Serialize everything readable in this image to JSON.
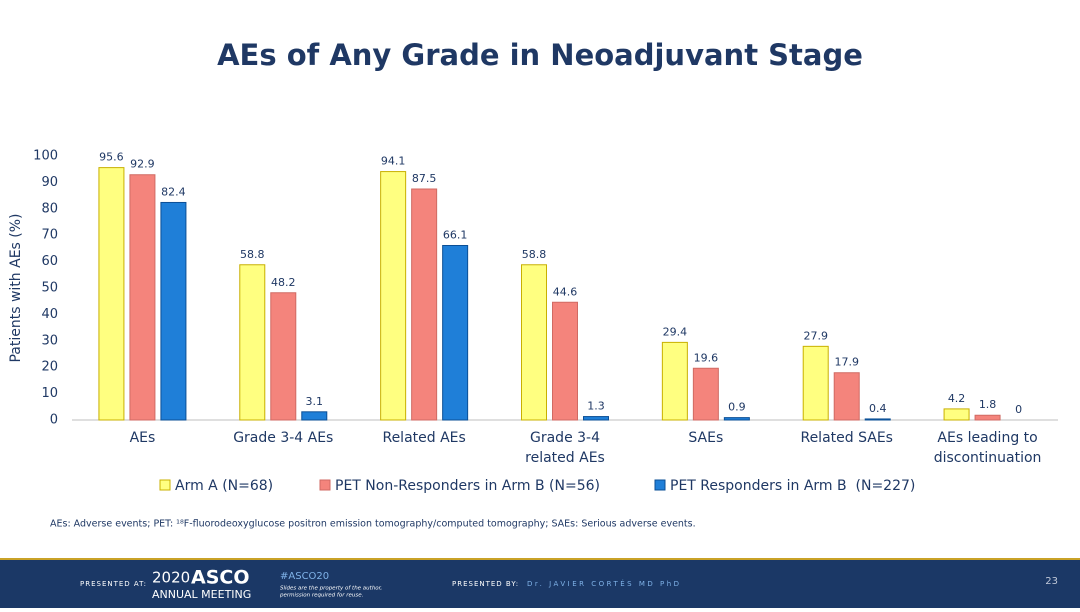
{
  "chart_data": {
    "type": "bar",
    "title": "AEs of Any Grade in Neoadjuvant Stage",
    "y_label": "Patients with AEs (%)",
    "categories": [
      [
        "AEs"
      ],
      [
        "Grade 3-4 AEs"
      ],
      [
        "Related AEs"
      ],
      [
        "Grade 3-4",
        "related AEs"
      ],
      [
        "SAEs"
      ],
      [
        "Related SAEs"
      ],
      [
        "AEs leading to",
        "discontinuation"
      ]
    ],
    "series": [
      {
        "name": "Arm A (N=68)",
        "color": "#ffff80",
        "values": [
          95.6,
          58.8,
          94.1,
          58.8,
          29.4,
          27.9,
          4.2
        ]
      },
      {
        "name": "PET Non-Responders in Arm B (N=56)",
        "color": "#f4847c",
        "values": [
          92.9,
          48.2,
          87.5,
          44.6,
          19.6,
          17.9,
          1.8
        ]
      },
      {
        "name": "PET Responders in Arm B  (N=227)",
        "color": "#1f7fd8",
        "values": [
          82.4,
          3.1,
          66.1,
          1.3,
          0.9,
          0.4,
          0
        ]
      }
    ],
    "ylim": [
      0,
      100
    ],
    "yticks": [
      0,
      10,
      20,
      30,
      40,
      50,
      60,
      70,
      80,
      90,
      100
    ],
    "legend": "bottom",
    "footnote": "AEs: Adverse events; PET: ¹⁸F-fluorodeoxyglucose positron emission tomography/computed tomography; SAEs: Serious adverse events."
  },
  "footer": {
    "presented_at": "PRESENTED AT:",
    "year": "2020",
    "brand": "ASCO",
    "meeting": "ANNUAL MEETING",
    "hashtag": "#ASCO20",
    "notice": [
      "Slides are the property of the author,",
      "permission required for reuse."
    ],
    "presented_by": "PRESENTED BY:",
    "presenter": "Dr. JAVIER CORTÉS MD PhD",
    "page": "23"
  }
}
